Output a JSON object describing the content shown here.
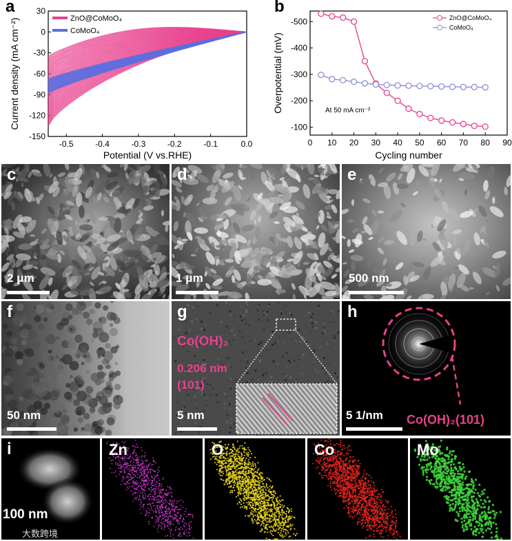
{
  "panels": {
    "a": "a",
    "b": "b",
    "c": "c",
    "d": "d",
    "e": "e",
    "f": "f",
    "g": "g",
    "h": "h",
    "i": "i"
  },
  "chart_a": {
    "type": "line",
    "xlabel": "Potential (V vs.RHE)",
    "ylabel": "Current density (mA cm⁻²)",
    "xticks": [
      "-0.5",
      "-0.4",
      "-0.3",
      "-0.2",
      "-0.1",
      "0.0"
    ],
    "yticks": [
      "30",
      "0",
      "-30",
      "-60",
      "-90",
      "-120",
      "-150"
    ],
    "xlim": [
      -0.55,
      0.0
    ],
    "ylim": [
      -150,
      30
    ],
    "series": [
      {
        "name": "ZnO@CoMoO₄",
        "color": "#e8418d"
      },
      {
        "name": "CoMoO₄",
        "color": "#5a6fe0"
      }
    ]
  },
  "chart_b": {
    "type": "line",
    "xlabel": "Cycling number",
    "ylabel": "Overpotential (mV)",
    "annotation": "At 50 mA cm⁻²",
    "xticks": [
      "0",
      "10",
      "20",
      "30",
      "40",
      "50",
      "60",
      "70",
      "80",
      "90"
    ],
    "yticks": [
      "-500",
      "-400",
      "-300",
      "-200",
      "-100"
    ],
    "xlim": [
      0,
      90
    ],
    "ylim": [
      -540,
      -70
    ],
    "series": [
      {
        "name": "ZnO@CoMoO₄",
        "color": "#e8418d",
        "x": [
          5,
          10,
          15,
          20,
          25,
          30,
          35,
          40,
          45,
          50,
          55,
          60,
          65,
          70,
          75,
          80
        ],
        "y": [
          -530,
          -520,
          -515,
          -500,
          -350,
          -265,
          -230,
          -200,
          -170,
          -150,
          -135,
          -125,
          -118,
          -112,
          -105,
          -102
        ]
      },
      {
        "name": "CoMoO₄",
        "color": "#8a8fd8",
        "x": [
          5,
          10,
          15,
          20,
          25,
          30,
          35,
          40,
          45,
          50,
          55,
          60,
          65,
          70,
          75,
          80
        ],
        "y": [
          -298,
          -282,
          -278,
          -272,
          -266,
          -262,
          -260,
          -258,
          -257,
          -256,
          -255,
          -254,
          -253,
          -252,
          -252,
          -251
        ]
      }
    ]
  },
  "scalebars": {
    "c": "2 μm",
    "d": "1 μm",
    "e": "500 nm",
    "f": "50 nm",
    "g": "5 nm",
    "h": "5 1/nm",
    "i": "100 nm"
  },
  "g_labels": {
    "phase": "Co(OH)₂",
    "dspacing": "0.206 nm",
    "plane": "(101)"
  },
  "h_label": "Co(OH)₂(101)",
  "elements": [
    "Zn",
    "O",
    "Co",
    "Mo"
  ],
  "colors": {
    "pink": "#e8418d",
    "blue": "#5a6fe0",
    "zn": "#d23bd8",
    "o": "#e6d21e",
    "co": "#e0231e",
    "mo": "#3ed23a"
  },
  "watermark": "大数跨境"
}
